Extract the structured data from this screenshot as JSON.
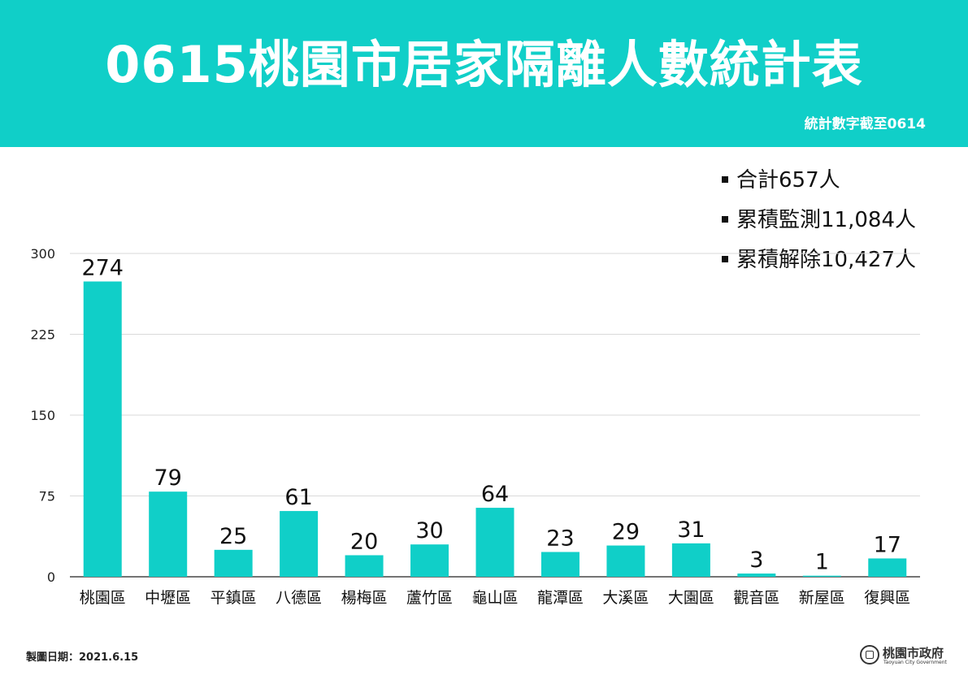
{
  "header": {
    "title": "0615桃園市居家隔離人數統計表",
    "as_of": "統計數字截至0614"
  },
  "summary": [
    {
      "label": "合計",
      "value": "657",
      "unit": "人"
    },
    {
      "label": "累積監測",
      "value": "11,084",
      "unit": "人"
    },
    {
      "label": "累積解除",
      "value": "10,427",
      "unit": "人"
    }
  ],
  "chart_data": {
    "type": "bar",
    "title": "",
    "xlabel": "",
    "ylabel": "",
    "categories": [
      "桃園區",
      "中壢區",
      "平鎮區",
      "八德區",
      "楊梅區",
      "蘆竹區",
      "龜山區",
      "龍潭區",
      "大溪區",
      "大園區",
      "觀音區",
      "新屋區",
      "復興區"
    ],
    "values": [
      274,
      79,
      25,
      61,
      20,
      30,
      64,
      23,
      29,
      31,
      3,
      1,
      17
    ],
    "ylim": [
      0,
      300
    ],
    "yticks": [
      0,
      75,
      150,
      225,
      300
    ],
    "grid": true,
    "bar_color": "#10cfc8"
  },
  "footer": {
    "date_label": "製圖日期：2021.6.15",
    "logo_name": "桃園市政府",
    "logo_sub": "Taoyuan City Government",
    "logo_seal_text": "桃園"
  },
  "colors": {
    "accent": "#10cfc8",
    "grid": "#d9d9d9",
    "text": "#111111"
  }
}
